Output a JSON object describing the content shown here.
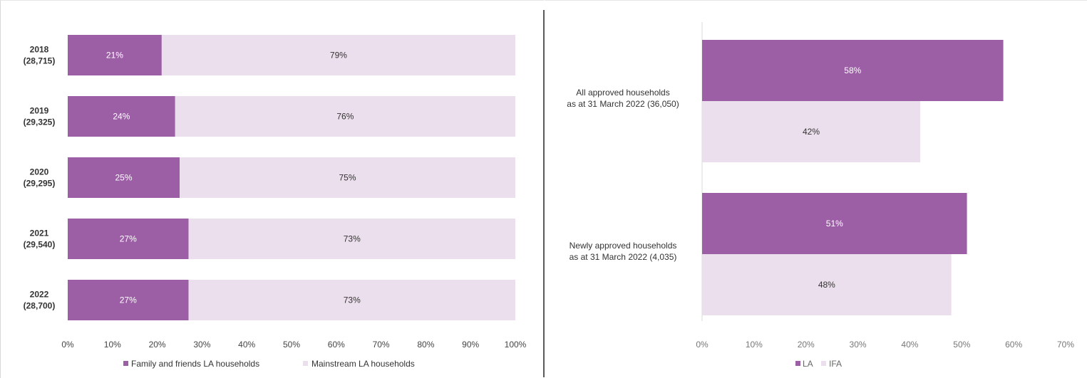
{
  "colors": {
    "primary": "#9c5fa6",
    "secondary": "#ecdfed"
  },
  "chart_data": [
    {
      "type": "bar",
      "orientation": "horizontal",
      "stacked": true,
      "title": "",
      "categories": [
        [
          "2018",
          "(28,715)"
        ],
        [
          "2019",
          "(29,325)"
        ],
        [
          "2020",
          "(29,295)"
        ],
        [
          "2021",
          "(29,540)"
        ],
        [
          "2022",
          "(28,700)"
        ]
      ],
      "series": [
        {
          "name": "Family and friends LA households",
          "values": [
            21,
            24,
            25,
            27,
            27
          ],
          "labels": [
            "21%",
            "24%",
            "25%",
            "27%",
            "27%"
          ]
        },
        {
          "name": "Mainstream LA households",
          "values": [
            79,
            76,
            75,
            73,
            73
          ],
          "labels": [
            "79%",
            "76%",
            "75%",
            "73%",
            "73%"
          ]
        }
      ],
      "xlim": [
        0,
        100
      ],
      "xticks": [
        "0%",
        "10%",
        "20%",
        "30%",
        "40%",
        "50%",
        "60%",
        "70%",
        "80%",
        "90%",
        "100%"
      ],
      "legend_position": "bottom",
      "grid": false
    },
    {
      "type": "bar",
      "orientation": "horizontal",
      "stacked": false,
      "title": "",
      "categories": [
        [
          "All approved households",
          "as at 31 March 2022 (36,050)"
        ],
        [
          "Newly approved households",
          "as at 31 March 2022 (4,035)"
        ]
      ],
      "series": [
        {
          "name": "LA",
          "values": [
            58,
            51
          ],
          "labels": [
            "58%",
            "51%"
          ]
        },
        {
          "name": "IFA",
          "values": [
            42,
            48
          ],
          "labels": [
            "42%",
            "48%"
          ]
        }
      ],
      "xlim": [
        0,
        70
      ],
      "xticks": [
        "0%",
        "10%",
        "20%",
        "30%",
        "40%",
        "50%",
        "60%",
        "70%"
      ],
      "legend_position": "bottom",
      "grid": false
    }
  ]
}
